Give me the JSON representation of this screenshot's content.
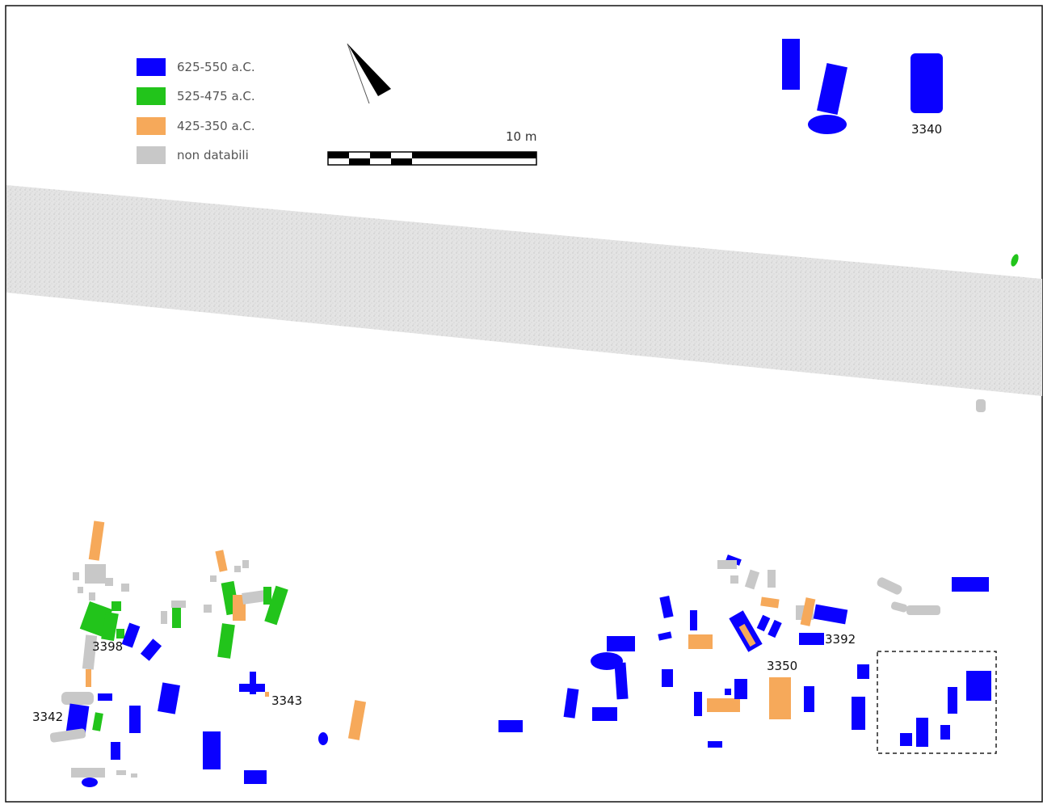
{
  "legend": [
    {
      "label": "625-550 a.C.",
      "color": "#0a00ff"
    },
    {
      "label": "525-475 a.C.",
      "color": "#22c41b"
    },
    {
      "label": "425-350 a.C.",
      "color": "#f6a95a"
    },
    {
      "label": "non databili",
      "color": "#c8c8c8"
    }
  ],
  "scale": {
    "label": "10 m"
  },
  "labels": {
    "l3340": "3340",
    "l3398": "3398",
    "l3343": "3343",
    "l3342": "3342",
    "l3350": "3350",
    "l3392": "3392"
  },
  "colors": {
    "blue": "#0a00ff",
    "green": "#22c41b",
    "orange": "#f6a95a",
    "gray": "#c8c8c8",
    "road": "#d9d9d9"
  }
}
